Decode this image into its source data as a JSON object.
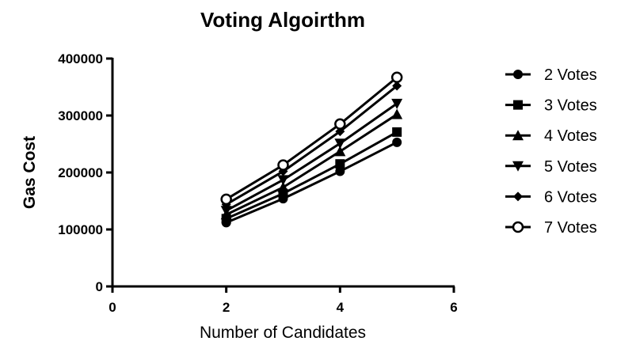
{
  "chart_data": {
    "type": "line",
    "title": "Voting Algoirthm",
    "xlabel": "Number of Candidates",
    "ylabel": "Gas Cost",
    "xlim": [
      0,
      6
    ],
    "ylim": [
      0,
      400000
    ],
    "xticks": [
      0,
      2,
      4,
      6
    ],
    "yticks": [
      0,
      100000,
      200000,
      300000,
      400000
    ],
    "xtick_labels": [
      "0",
      "2",
      "4",
      "6"
    ],
    "ytick_labels": [
      "0",
      "100000",
      "200000",
      "300000",
      "400000"
    ],
    "grid": false,
    "legend_position": "right",
    "x": [
      2,
      3,
      4,
      5
    ],
    "series": [
      {
        "name": "2 Votes",
        "marker": "circle",
        "values": [
          112000,
          154000,
          202000,
          253000
        ]
      },
      {
        "name": "3 Votes",
        "marker": "square",
        "values": [
          119000,
          163000,
          215000,
          271000
        ]
      },
      {
        "name": "4 Votes",
        "marker": "triangle-up",
        "values": [
          126000,
          174000,
          237000,
          302000
        ]
      },
      {
        "name": "5 Votes",
        "marker": "triangle-down",
        "values": [
          133000,
          187000,
          251000,
          321000
        ]
      },
      {
        "name": "6 Votes",
        "marker": "diamond",
        "values": [
          144000,
          202000,
          272000,
          352000
        ]
      },
      {
        "name": "7 Votes",
        "marker": "circle-open",
        "values": [
          153000,
          213000,
          285000,
          367000
        ]
      }
    ]
  }
}
